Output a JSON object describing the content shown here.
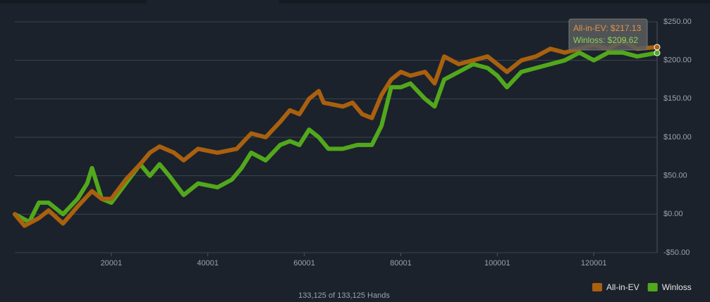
{
  "chart_data": {
    "type": "line",
    "xlim": [
      1,
      133125
    ],
    "xticks": [
      20001,
      40001,
      60001,
      80001,
      100001,
      120001
    ],
    "ylim": [
      -50,
      250
    ],
    "yticks": [
      {
        "value": 250,
        "label": "$250.00"
      },
      {
        "value": 200,
        "label": "$200.00"
      },
      {
        "value": 150,
        "label": "$150.00"
      },
      {
        "value": 100,
        "label": "$100.00"
      },
      {
        "value": 50,
        "label": "$50.00"
      },
      {
        "value": 0,
        "label": "$0.00"
      },
      {
        "value": -50,
        "label": "-$50.00"
      }
    ],
    "grid": true,
    "legend": "bottom-right",
    "footer": "133,125 of 133,125 Hands",
    "tooltip": [
      "All-in-EV: $217.13",
      "Winloss: $209.62"
    ],
    "series": [
      {
        "name": "All-in-EV",
        "color": "#a9600f",
        "x": [
          1,
          2000,
          5000,
          7000,
          10000,
          13000,
          16000,
          18000,
          20000,
          23000,
          26000,
          28000,
          30000,
          33000,
          35000,
          38000,
          42000,
          46000,
          49000,
          52000,
          55000,
          57000,
          59000,
          61000,
          63000,
          64000,
          68000,
          70000,
          72000,
          74000,
          76000,
          78000,
          80000,
          82000,
          85000,
          87000,
          89000,
          92000,
          95000,
          98000,
          100000,
          102000,
          105000,
          108000,
          111000,
          114000,
          117000,
          120000,
          123000,
          126000,
          129000,
          133125
        ],
        "values": [
          0,
          -15,
          -5,
          5,
          -12,
          10,
          30,
          20,
          20,
          45,
          65,
          80,
          88,
          80,
          70,
          85,
          80,
          85,
          105,
          100,
          120,
          135,
          130,
          150,
          160,
          145,
          140,
          145,
          130,
          125,
          155,
          175,
          185,
          180,
          185,
          170,
          205,
          195,
          200,
          205,
          195,
          185,
          200,
          205,
          215,
          210,
          215,
          220,
          215,
          225,
          215,
          217.13
        ]
      },
      {
        "name": "Winloss",
        "color": "#52a81c",
        "x": [
          1,
          3000,
          5000,
          7000,
          10000,
          13000,
          15000,
          16000,
          18000,
          20000,
          23000,
          26000,
          28000,
          30000,
          32000,
          35000,
          38000,
          42000,
          45000,
          47000,
          49000,
          52000,
          55000,
          57000,
          59000,
          61000,
          63000,
          65000,
          68000,
          71000,
          74000,
          76000,
          78000,
          80000,
          82000,
          85000,
          87000,
          89000,
          92000,
          95000,
          98000,
          100000,
          102000,
          105000,
          108000,
          111000,
          114000,
          117000,
          120000,
          123000,
          126000,
          129000,
          133125
        ],
        "values": [
          0,
          -10,
          15,
          15,
          0,
          20,
          40,
          60,
          20,
          15,
          40,
          65,
          50,
          65,
          50,
          25,
          40,
          35,
          45,
          60,
          80,
          70,
          90,
          95,
          90,
          110,
          100,
          85,
          85,
          90,
          90,
          115,
          165,
          165,
          170,
          150,
          140,
          175,
          185,
          195,
          190,
          180,
          165,
          185,
          190,
          195,
          200,
          210,
          200,
          210,
          210,
          205,
          209.62
        ]
      }
    ]
  }
}
